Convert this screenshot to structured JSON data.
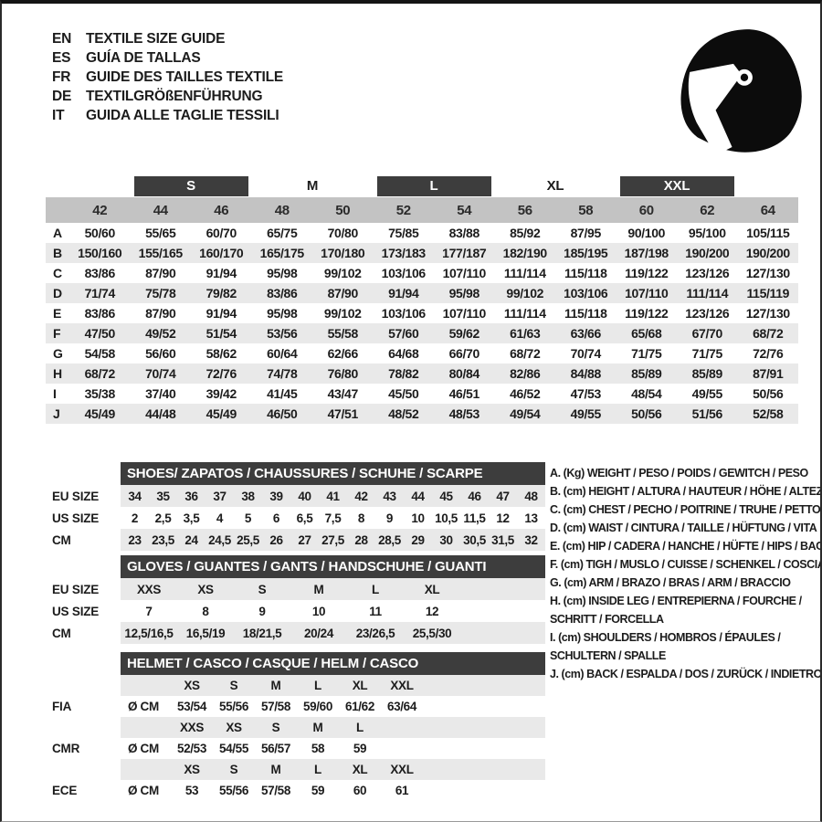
{
  "colors": {
    "bar_dark": "#3d3d3d",
    "band_grey": "#c3c3c3",
    "stripe_grey": "#e9e9e9",
    "text": "#1c1c1c",
    "bar_text": "#ffffff"
  },
  "header": {
    "logo_icon": "racing-helmet-icon",
    "languages": [
      {
        "code": "EN",
        "title": "TEXTILE SIZE GUIDE"
      },
      {
        "code": "ES",
        "title": "GUÍA DE TALLAS"
      },
      {
        "code": "FR",
        "title": "GUIDE DES TAILLES TEXTILE"
      },
      {
        "code": "DE",
        "title": "TEXTILGRÖßENFÜHRUNG"
      },
      {
        "code": "IT",
        "title": "GUIDA ALLE TAGLIE TESSILI"
      }
    ]
  },
  "main_table": {
    "size_groups": [
      {
        "label": "S",
        "dark": true
      },
      {
        "label": "M",
        "dark": false
      },
      {
        "label": "L",
        "dark": true
      },
      {
        "label": "XL",
        "dark": false
      },
      {
        "label": "XXL",
        "dark": true
      }
    ],
    "columns": [
      "42",
      "44",
      "46",
      "48",
      "50",
      "52",
      "54",
      "56",
      "58",
      "60",
      "62",
      "64"
    ],
    "rows": [
      {
        "label": "A",
        "values": [
          "50/60",
          "55/65",
          "60/70",
          "65/75",
          "70/80",
          "75/85",
          "83/88",
          "85/92",
          "87/95",
          "90/100",
          "95/100",
          "105/115"
        ]
      },
      {
        "label": "B",
        "values": [
          "150/160",
          "155/165",
          "160/170",
          "165/175",
          "170/180",
          "173/183",
          "177/187",
          "182/190",
          "185/195",
          "187/198",
          "190/200",
          "190/200"
        ]
      },
      {
        "label": "C",
        "values": [
          "83/86",
          "87/90",
          "91/94",
          "95/98",
          "99/102",
          "103/106",
          "107/110",
          "111/114",
          "115/118",
          "119/122",
          "123/126",
          "127/130"
        ]
      },
      {
        "label": "D",
        "values": [
          "71/74",
          "75/78",
          "79/82",
          "83/86",
          "87/90",
          "91/94",
          "95/98",
          "99/102",
          "103/106",
          "107/110",
          "111/114",
          "115/119"
        ]
      },
      {
        "label": "E",
        "values": [
          "83/86",
          "87/90",
          "91/94",
          "95/98",
          "99/102",
          "103/106",
          "107/110",
          "111/114",
          "115/118",
          "119/122",
          "123/126",
          "127/130"
        ]
      },
      {
        "label": "F",
        "values": [
          "47/50",
          "49/52",
          "51/54",
          "53/56",
          "55/58",
          "57/60",
          "59/62",
          "61/63",
          "63/66",
          "65/68",
          "67/70",
          "68/72"
        ]
      },
      {
        "label": "G",
        "values": [
          "54/58",
          "56/60",
          "58/62",
          "60/64",
          "62/66",
          "64/68",
          "66/70",
          "68/72",
          "70/74",
          "71/75",
          "71/75",
          "72/76"
        ]
      },
      {
        "label": "H",
        "values": [
          "68/72",
          "70/74",
          "72/76",
          "74/78",
          "76/80",
          "78/82",
          "80/84",
          "82/86",
          "84/88",
          "85/89",
          "85/89",
          "87/91"
        ]
      },
      {
        "label": "I",
        "values": [
          "35/38",
          "37/40",
          "39/42",
          "41/45",
          "43/47",
          "45/50",
          "46/51",
          "46/52",
          "47/53",
          "48/54",
          "49/55",
          "50/56"
        ]
      },
      {
        "label": "J",
        "values": [
          "45/49",
          "44/48",
          "45/49",
          "46/50",
          "47/51",
          "48/52",
          "48/53",
          "49/54",
          "49/55",
          "50/56",
          "51/56",
          "52/58"
        ]
      }
    ]
  },
  "shoes_table": {
    "title": "SHOES/ ZAPATOS / CHAUSSURES / SCHUHE / SCARPE",
    "rows": [
      {
        "label": "EU SIZE",
        "values": [
          "34",
          "35",
          "36",
          "37",
          "38",
          "39",
          "40",
          "41",
          "42",
          "43",
          "44",
          "45",
          "46",
          "47",
          "48"
        ]
      },
      {
        "label": "US SIZE",
        "values": [
          "2",
          "2,5",
          "3,5",
          "4",
          "5",
          "6",
          "6,5",
          "7,5",
          "8",
          "9",
          "10",
          "10,5",
          "11,5",
          "12",
          "13"
        ]
      },
      {
        "label": "CM",
        "values": [
          "23",
          "23,5",
          "24",
          "24,5",
          "25,5",
          "26",
          "27",
          "27,5",
          "28",
          "28,5",
          "29",
          "30",
          "30,5",
          "31,5",
          "32"
        ]
      }
    ]
  },
  "gloves_table": {
    "title": "GLOVES / GUANTES / GANTS / HANDSCHUHE / GUANTI",
    "rows": [
      {
        "label": "EU SIZE",
        "values": [
          "XXS",
          "XS",
          "S",
          "M",
          "L",
          "XL"
        ]
      },
      {
        "label": "US SIZE",
        "values": [
          "7",
          "8",
          "9",
          "10",
          "11",
          "12"
        ]
      },
      {
        "label": "CM",
        "values": [
          "12,5/16,5",
          "16,5/19",
          "18/21,5",
          "20/24",
          "23/26,5",
          "25,5/30"
        ]
      }
    ]
  },
  "helmet_table": {
    "title": "HELMET / CASCO / CASQUE / HELM / CASCO",
    "sections": [
      {
        "standard": "FIA",
        "unit": "Ø CM",
        "sizes": [
          "XS",
          "S",
          "M",
          "L",
          "XL",
          "XXL"
        ],
        "values": [
          "53/54",
          "55/56",
          "57/58",
          "59/60",
          "61/62",
          "63/64"
        ]
      },
      {
        "standard": "CMR",
        "unit": "Ø CM",
        "sizes": [
          "XXS",
          "XS",
          "S",
          "M",
          "L",
          ""
        ],
        "values": [
          "52/53",
          "54/55",
          "56/57",
          "58",
          "59",
          ""
        ]
      },
      {
        "standard": "ECE",
        "unit": "Ø CM",
        "sizes": [
          "XS",
          "S",
          "M",
          "L",
          "XL",
          "XXL"
        ],
        "values": [
          "53",
          "55/56",
          "57/58",
          "59",
          "60",
          "61"
        ]
      }
    ]
  },
  "legend": {
    "items": [
      {
        "lines": [
          "A. (Kg) WEIGHT / PESO / POIDS / GEWITCH / PESO"
        ]
      },
      {
        "lines": [
          "B. (cm) HEIGHT / ALTURA / HAUTEUR / HÖHE / ALTEZZA"
        ]
      },
      {
        "lines": [
          "C. (cm) CHEST / PECHO / POITRINE / TRUHE / PETTO"
        ]
      },
      {
        "lines": [
          "D. (cm) WAIST / CINTURA / TAILLE / HÜFTUNG / VITA"
        ]
      },
      {
        "lines": [
          "E. (cm) HIP / CADERA / HANCHE / HÜFTE / HIPS / BACINO"
        ]
      },
      {
        "lines": [
          "F. (cm) TIGH / MUSLO / CUISSE / SCHENKEL / COSCIA"
        ]
      },
      {
        "lines": [
          "G. (cm) ARM / BRAZO / BRAS / ARM / BRACCIO"
        ]
      },
      {
        "lines": [
          "H. (cm) INSIDE LEG / ENTREPIERNA / FOURCHE /",
          "SCHRITT / FORCELLA"
        ]
      },
      {
        "lines": [
          "I. (cm) SHOULDERS / HOMBROS / ÉPAULES /",
          "SCHULTERN / SPALLE"
        ]
      },
      {
        "lines": [
          "J. (cm) BACK / ESPALDA / DOS / ZURÜCK / INDIETRO"
        ]
      }
    ]
  }
}
